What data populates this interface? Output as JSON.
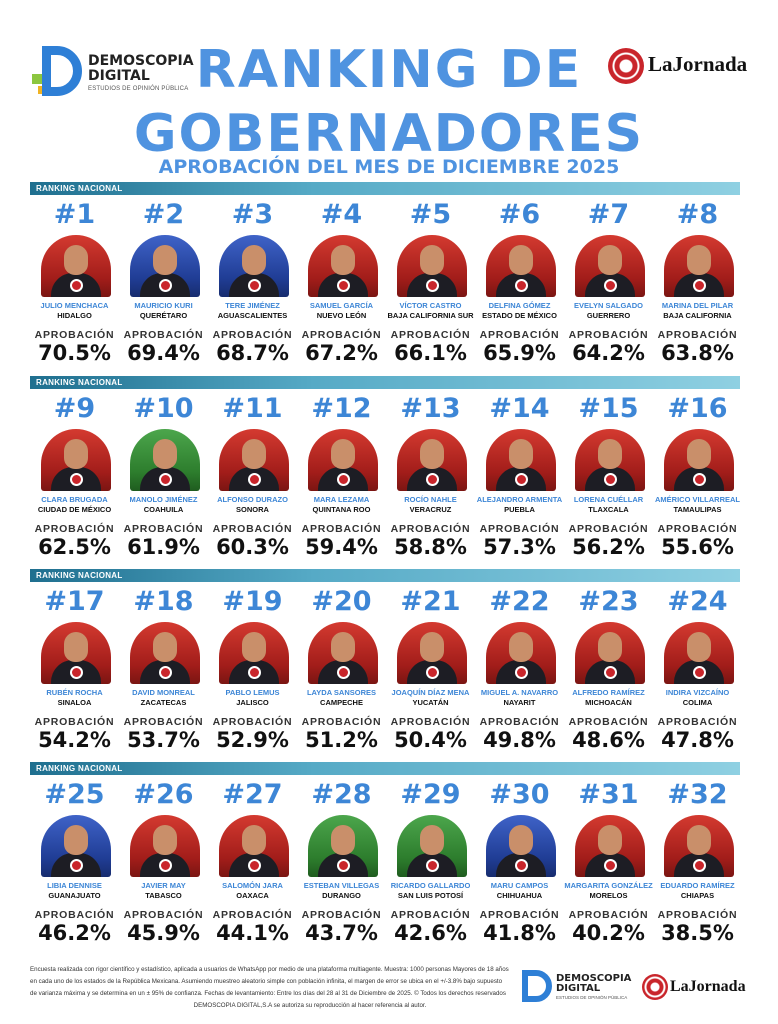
{
  "header": {
    "logo_left": {
      "name": "DEMOSCOPIA DIGITAL",
      "sub": "ESTUDIOS DE OPINIÓN PÚBLICA"
    },
    "logo_right": "LaJornada",
    "title_line1": "RANKING DE",
    "title_line2": "GOBERNADORES",
    "subtitle": "APROBACIÓN DEL MES DE DICIEMBRE 2025"
  },
  "rank_label": "RANKING NACIONAL",
  "approval_label": "APROBACIÓN",
  "sections": [
    {
      "governors": [
        {
          "rank": "#1",
          "name": "JULIO MENCHACA",
          "state": "HIDALGO",
          "approval": "70.5%",
          "bg": "red"
        },
        {
          "rank": "#2",
          "name": "MAURICIO KURI",
          "state": "QUERÉTARO",
          "approval": "69.4%",
          "bg": "blue"
        },
        {
          "rank": "#3",
          "name": "TERE JIMÉNEZ",
          "state": "AGUASCALIENTES",
          "approval": "68.7%",
          "bg": "blue"
        },
        {
          "rank": "#4",
          "name": "SAMUEL GARCÍA",
          "state": "NUEVO LEÓN",
          "approval": "67.2%",
          "bg": "red"
        },
        {
          "rank": "#5",
          "name": "VÍCTOR CASTRO",
          "state": "BAJA CALIFORNIA SUR",
          "approval": "66.1%",
          "bg": "red"
        },
        {
          "rank": "#6",
          "name": "DELFINA GÓMEZ",
          "state": "ESTADO DE MÉXICO",
          "approval": "65.9%",
          "bg": "red"
        },
        {
          "rank": "#7",
          "name": "EVELYN SALGADO",
          "state": "GUERRERO",
          "approval": "64.2%",
          "bg": "red"
        },
        {
          "rank": "#8",
          "name": "MARINA DEL PILAR",
          "state": "BAJA CALIFORNIA",
          "approval": "63.8%",
          "bg": "red"
        }
      ]
    },
    {
      "governors": [
        {
          "rank": "#9",
          "name": "CLARA BRUGADA",
          "state": "CIUDAD DE MÉXICO",
          "approval": "62.5%",
          "bg": "red"
        },
        {
          "rank": "#10",
          "name": "MANOLO JIMÉNEZ",
          "state": "COAHUILA",
          "approval": "61.9%",
          "bg": "green"
        },
        {
          "rank": "#11",
          "name": "ALFONSO DURAZO",
          "state": "SONORA",
          "approval": "60.3%",
          "bg": "red"
        },
        {
          "rank": "#12",
          "name": "MARA LEZAMA",
          "state": "QUINTANA ROO",
          "approval": "59.4%",
          "bg": "red"
        },
        {
          "rank": "#13",
          "name": "ROCÍO NAHLE",
          "state": "VERACRUZ",
          "approval": "58.8%",
          "bg": "red"
        },
        {
          "rank": "#14",
          "name": "ALEJANDRO ARMENTA",
          "state": "PUEBLA",
          "approval": "57.3%",
          "bg": "red"
        },
        {
          "rank": "#15",
          "name": "LORENA CUÉLLAR",
          "state": "TLAXCALA",
          "approval": "56.2%",
          "bg": "red"
        },
        {
          "rank": "#16",
          "name": "AMÉRICO VILLARREAL",
          "state": "TAMAULIPAS",
          "approval": "55.6%",
          "bg": "red"
        }
      ]
    },
    {
      "governors": [
        {
          "rank": "#17",
          "name": "RUBÉN ROCHA",
          "state": "SINALOA",
          "approval": "54.2%",
          "bg": "red"
        },
        {
          "rank": "#18",
          "name": "DAVID MONREAL",
          "state": "ZACATECAS",
          "approval": "53.7%",
          "bg": "red"
        },
        {
          "rank": "#19",
          "name": "PABLO LEMUS",
          "state": "JALISCO",
          "approval": "52.9%",
          "bg": "red"
        },
        {
          "rank": "#20",
          "name": "LAYDA SANSORES",
          "state": "CAMPECHE",
          "approval": "51.2%",
          "bg": "red"
        },
        {
          "rank": "#21",
          "name": "JOAQUÍN DÍAZ MENA",
          "state": "YUCATÁN",
          "approval": "50.4%",
          "bg": "red"
        },
        {
          "rank": "#22",
          "name": "MIGUEL A. NAVARRO",
          "state": "NAYARIT",
          "approval": "49.8%",
          "bg": "red"
        },
        {
          "rank": "#23",
          "name": "ALFREDO RAMÍREZ",
          "state": "MICHOACÁN",
          "approval": "48.6%",
          "bg": "red"
        },
        {
          "rank": "#24",
          "name": "INDIRA VIZCAÍNO",
          "state": "COLIMA",
          "approval": "47.8%",
          "bg": "red"
        }
      ]
    },
    {
      "governors": [
        {
          "rank": "#25",
          "name": "LIBIA DENNISE",
          "state": "GUANAJUATO",
          "approval": "46.2%",
          "bg": "blue"
        },
        {
          "rank": "#26",
          "name": "JAVIER MAY",
          "state": "TABASCO",
          "approval": "45.9%",
          "bg": "red"
        },
        {
          "rank": "#27",
          "name": "SALOMÓN JARA",
          "state": "OAXACA",
          "approval": "44.1%",
          "bg": "red"
        },
        {
          "rank": "#28",
          "name": "ESTEBAN VILLEGAS",
          "state": "DURANGO",
          "approval": "43.7%",
          "bg": "green"
        },
        {
          "rank": "#29",
          "name": "RICARDO GALLARDO",
          "state": "SAN LUIS POTOSÍ",
          "approval": "42.6%",
          "bg": "green"
        },
        {
          "rank": "#30",
          "name": "MARU CAMPOS",
          "state": "CHIHUAHUA",
          "approval": "41.8%",
          "bg": "blue"
        },
        {
          "rank": "#31",
          "name": "MARGARITA GONZÁLEZ",
          "state": "MORELOS",
          "approval": "40.2%",
          "bg": "red"
        },
        {
          "rank": "#32",
          "name": "EDUARDO RAMÍREZ",
          "state": "CHIAPAS",
          "approval": "38.5%",
          "bg": "red"
        }
      ]
    }
  ],
  "footer": {
    "line1": "Encuesta realizada con rigor científico y estadístico, aplicada a usuarios de WhatsApp por medio de una plataforma multiagente. Muestra: 1000 personas Mayores de 18 años",
    "line2": "en cada uno de los estados de la República Mexicana. Asumiendo muestreo aleatorio simple con población infinita, el margen de error se ubica en el +/-3.8% bajo supuesto",
    "line3": "de varianza máxima y se determina en un ± 95% de confianza. Fechas de levantamiento: Entre los días del 28 al 31 de Diciembre de 2025. © Todos los derechos reservados",
    "line4": "DEMOSCOPIA DIGITAL,S.A se autoriza su reproducción al hacer referencia al autor.",
    "logo_left_name": "DEMOSCOPIA DIGITAL",
    "logo_left_sub": "ESTUDIOS DE OPINIÓN PÚBLICA",
    "logo_right": "LaJornada"
  }
}
